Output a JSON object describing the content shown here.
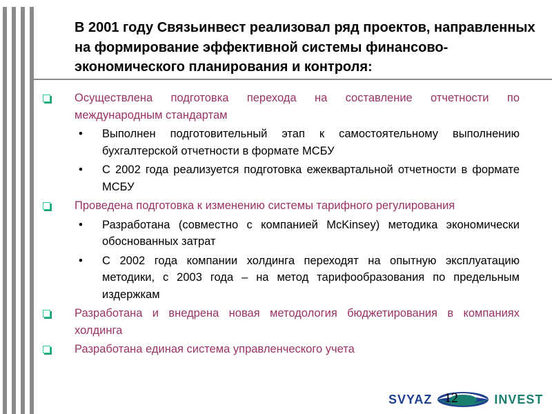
{
  "title": "В 2001 году Связьинвест реализовал  ряд проектов, направленных на формирование эффективной системы финансово-экономического планирования и контроля:",
  "items": [
    {
      "text": "Осуществлена подготовка перехода на составление отчетности по международным стандартам",
      "sub": [
        "Выполнен подготовительный этап к самостоятельному выполнению бухгалтерской отчетности в формате МСБУ",
        "С 2002 года реализуется подготовка ежеквартальной отчетности в формате МСБУ"
      ]
    },
    {
      "text": "Проведена подготовка к изменению системы  тарифного регулирования",
      "sub": [
        "Разработана (совместно с компанией McKinsey) методика экономически обоснованных затрат",
        "С 2002 года компании холдинга переходят на опытную эксплуатацию методики, с 2003 года – на метод тарифообразования по предельным издержкам"
      ]
    },
    {
      "text": "Разработана и внедрена новая методология бюджетирования в компаниях холдинга",
      "sub": []
    },
    {
      "text": "Разработана единая система управленческого учета",
      "sub": []
    }
  ],
  "logo": {
    "left": "SVYAZ",
    "right": "INVEST"
  },
  "page_number": "12",
  "colors": {
    "accent": "#993366",
    "checkbox": "#33cc99",
    "bars": "#8a8a8a"
  }
}
